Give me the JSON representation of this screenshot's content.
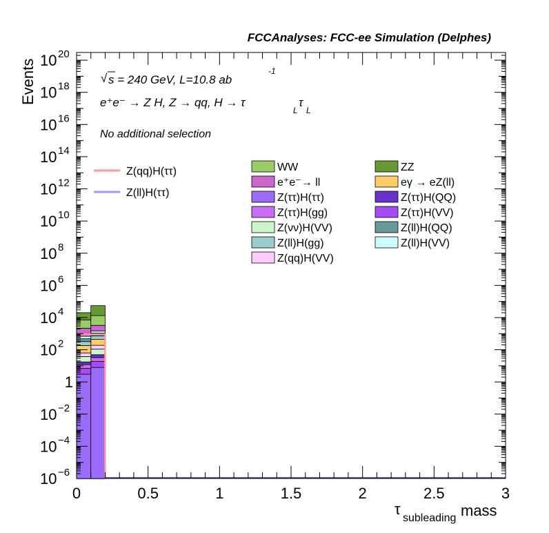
{
  "chart_data": {
    "type": "histogram-stacked",
    "title": "FCCAnalyses: FCC-ee Simulation (Delphes)",
    "xlabel": {
      "main": "τ",
      "sub": "subleading",
      "rest": " mass"
    },
    "ylabel": "Events",
    "xlim": [
      0,
      3
    ],
    "ylim": [
      1e-06,
      3e+20
    ],
    "log_y": true,
    "x_ticks": [
      "0",
      "0.5",
      "1",
      "1.5",
      "2",
      "2.5",
      "3"
    ],
    "y_ticks": [
      {
        "base": "10",
        "exp": "20"
      },
      {
        "base": "10",
        "exp": "18"
      },
      {
        "base": "10",
        "exp": "16"
      },
      {
        "base": "10",
        "exp": "14"
      },
      {
        "base": "10",
        "exp": "12"
      },
      {
        "base": "10",
        "exp": "10"
      },
      {
        "base": "10",
        "exp": "8"
      },
      {
        "base": "10",
        "exp": "6"
      },
      {
        "base": "10",
        "exp": "4"
      },
      {
        "base": "10",
        "exp": "2"
      },
      {
        "base": "1",
        "exp": ""
      },
      {
        "base": "10",
        "exp": "−2"
      },
      {
        "base": "10",
        "exp": "−4"
      },
      {
        "base": "10",
        "exp": "−6"
      }
    ],
    "annotations": {
      "sqrt_s": "s = 240 GeV, L=10.8 ab",
      "lumi_exp": "-1",
      "process": "e⁺e⁻ → Z H, Z → qq, H → τ",
      "process_sub1": "L",
      "process_tau2": "τ",
      "process_sub2": "L",
      "selection": "No additional selection"
    },
    "bin_edges": [
      0,
      0.1,
      0.2
    ],
    "stack_order_bottom_to_top": [
      {
        "name": "Z(ττ)H(ττ)",
        "color": "#9b6cf9",
        "values": [
          3.0,
          8.0
        ]
      },
      {
        "name": "Z(ττ)H(VV)",
        "color": "#a64cf4",
        "values": [
          4.0,
          11.0
        ]
      },
      {
        "name": "Z(ττ)H(gg)",
        "color": "#c86ef2",
        "values": [
          5.0,
          14.0
        ]
      },
      {
        "name": "Z(ττ)H(QQ)",
        "color": "#6a32c8",
        "values": [
          5.5,
          16.0
        ]
      },
      {
        "name": "Z(νν)H(VV)",
        "color": "#ccf5cc",
        "values": [
          20.0,
          60.0
        ]
      },
      {
        "name": "Z(qq)H(VV)",
        "color": "#ffccff",
        "values": [
          26.0,
          80.0
        ]
      },
      {
        "name": "eγ → eZ(ll)",
        "color": "#ffcc66",
        "values": [
          120.0,
          250.0
        ]
      },
      {
        "name": "Z(ll)H(gg)",
        "color": "#99cccc",
        "values": [
          140.0,
          300.0
        ]
      },
      {
        "name": "Z(ll)H(QQ)",
        "color": "#669999",
        "values": [
          160.0,
          340.0
        ]
      },
      {
        "name": "Z(ll)H(VV)",
        "color": "#ccffff",
        "values": [
          200.0,
          400.0
        ]
      },
      {
        "name": "e⁺e⁻→ ll",
        "color": "#cc66cc",
        "values": [
          1500.0,
          1800.0
        ]
      },
      {
        "name": "WW",
        "color": "#99cc66",
        "values": [
          5000.0,
          10000.0
        ]
      },
      {
        "name": "ZZ",
        "color": "#669933",
        "values": [
          13000.0,
          42000.0
        ]
      }
    ],
    "signal_lines": [
      {
        "name": "Z(qq)H(ττ)",
        "color": "#ff9999",
        "values": [
          900.0,
          900.0
        ]
      },
      {
        "name": "Z(ll)H(ττ)",
        "color": "#9999ff",
        "values": [
          1e-06,
          1e-06
        ]
      }
    ],
    "legend_signal": [
      {
        "label": "Z(qq)H(ττ)",
        "color": "#ff9999"
      },
      {
        "label": "Z(ll)H(ττ)",
        "color": "#9999ff"
      }
    ],
    "legend_background": [
      {
        "label": "WW",
        "color": "#99cc66"
      },
      {
        "label": "ZZ",
        "color": "#669933"
      },
      {
        "label": "e⁺e⁻→ ll",
        "color": "#cc66cc"
      },
      {
        "label": "eγ → eZ(ll)",
        "color": "#ffcc66"
      },
      {
        "label": "Z(ττ)H(ττ)",
        "color": "#9b6cf9"
      },
      {
        "label": "Z(ττ)H(QQ)",
        "color": "#6a32c8"
      },
      {
        "label": "Z(ττ)H(gg)",
        "color": "#c86ef2"
      },
      {
        "label": "Z(ττ)H(VV)",
        "color": "#a64cf4"
      },
      {
        "label": "Z(νν)H(VV)",
        "color": "#ccf5cc"
      },
      {
        "label": "Z(ll)H(QQ)",
        "color": "#669999"
      },
      {
        "label": "Z(ll)H(gg)",
        "color": "#99cccc"
      },
      {
        "label": "Z(ll)H(VV)",
        "color": "#ccffff"
      },
      {
        "label": "Z(qq)H(VV)",
        "color": "#ffccff"
      }
    ]
  }
}
